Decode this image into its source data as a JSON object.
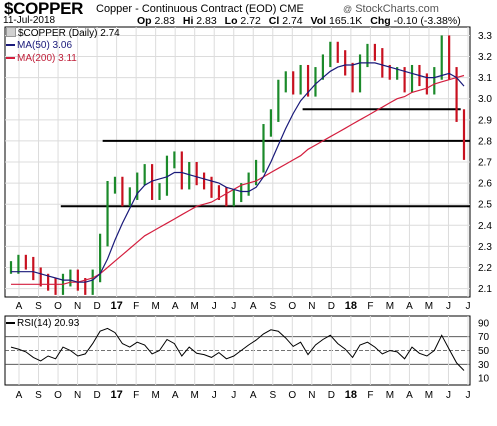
{
  "header": {
    "symbol": "$COPPER",
    "name": "Copper - Continuous Contract (EOD)",
    "exchange": "CME",
    "watermark": "StockCharts.com",
    "date": "11-Jul-2018",
    "stats": {
      "open_label": "Op",
      "open": "2.83",
      "high_label": "Hi",
      "high": "2.83",
      "low_label": "Lo",
      "low": "2.72",
      "close_label": "Cl",
      "close": "2.74",
      "vol_label": "Vol",
      "vol": "165.1K",
      "chg_label": "Chg",
      "chg": "-0.10 (-3.38%)"
    }
  },
  "legend": {
    "price": "$COPPER (Daily) 2.74",
    "ma50": "MA(50) 3.06",
    "ma200": "MA(200) 3.11"
  },
  "rsi_legend": "RSI(14) 20.93",
  "colors": {
    "up": "#1b8a2a",
    "down": "#c8101f",
    "ma50": "#1a1a7a",
    "ma200": "#d41e3e",
    "hline": "#000000",
    "grid": "#dcdcdc"
  },
  "chart_data": [
    {
      "type": "line",
      "name": "price",
      "y_ticks": [
        "2.1",
        "2.2",
        "2.3",
        "2.4",
        "2.5",
        "2.6",
        "2.7",
        "2.8",
        "2.9",
        "3.0",
        "3.1",
        "3.2",
        "3.3"
      ],
      "ylim": [
        2.06,
        3.34
      ],
      "x_labels": [
        "A",
        "S",
        "O",
        "N",
        "D",
        "17",
        "F",
        "M",
        "A",
        "M",
        "J",
        "J",
        "A",
        "S",
        "O",
        "N",
        "D",
        "18",
        "F",
        "M",
        "A",
        "M",
        "J",
        "J"
      ],
      "close": [
        2.2,
        2.23,
        2.22,
        2.17,
        2.14,
        2.12,
        2.1,
        2.14,
        2.16,
        2.12,
        2.1,
        2.16,
        2.33,
        2.58,
        2.6,
        2.52,
        2.55,
        2.62,
        2.66,
        2.55,
        2.57,
        2.7,
        2.72,
        2.6,
        2.67,
        2.62,
        2.6,
        2.56,
        2.55,
        2.52,
        2.54,
        2.57,
        2.62,
        2.68,
        2.85,
        2.92,
        3.06,
        3.1,
        3.05,
        3.13,
        3.04,
        3.12,
        3.18,
        3.24,
        3.2,
        3.14,
        3.06,
        3.18,
        3.23,
        3.21,
        3.13,
        3.12,
        3.12,
        3.06,
        3.13,
        3.09,
        3.05,
        3.12,
        3.27,
        3.12,
        2.92,
        2.74
      ],
      "ma50": [
        2.18,
        2.18,
        2.18,
        2.18,
        2.17,
        2.16,
        2.15,
        2.14,
        2.14,
        2.13,
        2.13,
        2.14,
        2.17,
        2.24,
        2.33,
        2.41,
        2.48,
        2.55,
        2.59,
        2.61,
        2.62,
        2.63,
        2.65,
        2.65,
        2.64,
        2.63,
        2.62,
        2.61,
        2.6,
        2.58,
        2.57,
        2.56,
        2.56,
        2.58,
        2.63,
        2.7,
        2.78,
        2.86,
        2.93,
        2.99,
        3.03,
        3.07,
        3.1,
        3.13,
        3.15,
        3.16,
        3.16,
        3.17,
        3.17,
        3.17,
        3.16,
        3.15,
        3.14,
        3.13,
        3.12,
        3.11,
        3.1,
        3.1,
        3.11,
        3.12,
        3.1,
        3.06
      ],
      "ma200": [
        2.12,
        2.12,
        2.12,
        2.12,
        2.12,
        2.12,
        2.12,
        2.12,
        2.13,
        2.13,
        2.14,
        2.15,
        2.17,
        2.2,
        2.23,
        2.26,
        2.29,
        2.32,
        2.35,
        2.37,
        2.39,
        2.41,
        2.43,
        2.45,
        2.47,
        2.49,
        2.5,
        2.51,
        2.53,
        2.55,
        2.57,
        2.59,
        2.6,
        2.61,
        2.63,
        2.65,
        2.67,
        2.69,
        2.71,
        2.73,
        2.76,
        2.78,
        2.8,
        2.82,
        2.84,
        2.86,
        2.88,
        2.9,
        2.92,
        2.94,
        2.96,
        2.98,
        3.0,
        3.01,
        3.03,
        3.04,
        3.05,
        3.07,
        3.08,
        3.09,
        3.1,
        3.11
      ],
      "hlines": [
        {
          "y": 2.49,
          "from": 0.12,
          "to": 1.0
        },
        {
          "y": 2.8,
          "from": 0.21,
          "to": 1.0
        },
        {
          "y": 2.95,
          "from": 0.64,
          "to": 0.98
        }
      ]
    },
    {
      "type": "line",
      "name": "rsi",
      "y_ticks": [
        "10",
        "30",
        "50",
        "70",
        "90"
      ],
      "ylim": [
        0,
        100
      ],
      "levels": [
        70,
        50,
        30
      ],
      "x_labels": [
        "A",
        "S",
        "O",
        "N",
        "D",
        "17",
        "F",
        "M",
        "A",
        "M",
        "J",
        "J",
        "A",
        "S",
        "O",
        "N",
        "D",
        "18",
        "F",
        "M",
        "A",
        "M",
        "J",
        "J"
      ],
      "values": [
        55,
        52,
        48,
        40,
        35,
        42,
        38,
        55,
        50,
        42,
        45,
        60,
        78,
        82,
        76,
        60,
        55,
        62,
        58,
        45,
        50,
        66,
        60,
        42,
        55,
        46,
        44,
        40,
        47,
        38,
        42,
        50,
        58,
        65,
        74,
        80,
        78,
        68,
        56,
        62,
        44,
        58,
        66,
        72,
        60,
        52,
        40,
        58,
        62,
        55,
        45,
        50,
        48,
        38,
        55,
        46,
        42,
        50,
        72,
        52,
        32,
        21
      ]
    }
  ]
}
